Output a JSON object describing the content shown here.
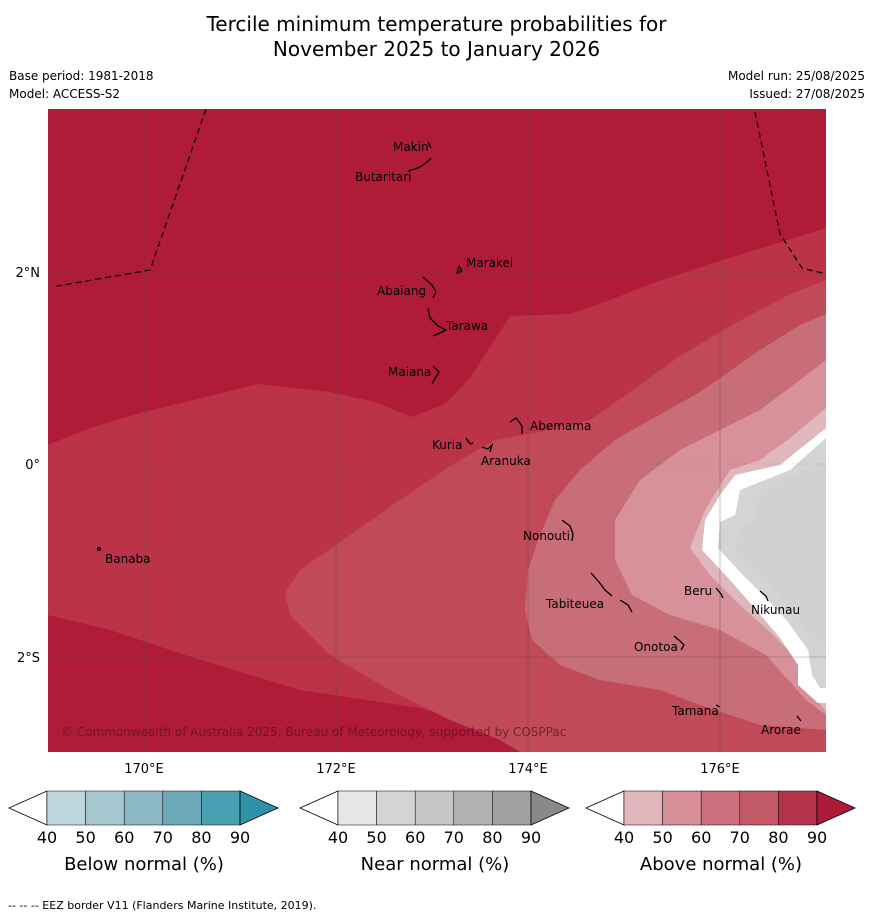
{
  "title_line1": "Tercile minimum temperature probabilities for",
  "title_line2": "November 2025 to January 2026",
  "meta_left": [
    "Base period: 1981-2018",
    "Model: ACCESS-S2"
  ],
  "meta_right": [
    "Model run: 25/08/2025",
    "Issued: 27/08/2025"
  ],
  "copyright": "© Commonwealth of Australia 2025, Bureau of Meteorology, supported by COSPPac",
  "axes": {
    "lon_ticks": [
      "170°E",
      "172°E",
      "174°E",
      "176°E"
    ],
    "lat_ticks": [
      "2°N",
      "0°",
      "2°S"
    ]
  },
  "islands": [
    "Makin",
    "Butaritari",
    "Marakei",
    "Abaiang",
    "Tarawa",
    "Maiana",
    "Abemama",
    "Kuria",
    "Aranuka",
    "Banaba",
    "Nonouti",
    "Tabiteuea",
    "Beru",
    "Nikunau",
    "Onotoa",
    "Tamana",
    "Arorae"
  ],
  "colorbars": [
    {
      "label": "Below normal (%)",
      "ticks": [
        "40",
        "50",
        "60",
        "70",
        "80",
        "90"
      ],
      "colors": [
        "#ffffff",
        "#bfd5dc",
        "#a6c7d0",
        "#8bb8c4",
        "#6ba9b8",
        "#4aa0b0",
        "#2e93a6"
      ]
    },
    {
      "label": "Near normal (%)",
      "ticks": [
        "40",
        "50",
        "60",
        "70",
        "80",
        "90"
      ],
      "colors": [
        "#ffffff",
        "#e6e6e6",
        "#d4d4d4",
        "#c6c6c6",
        "#b2b2b2",
        "#a0a0a0",
        "#888888"
      ]
    },
    {
      "label": "Above normal (%)",
      "ticks": [
        "40",
        "50",
        "60",
        "70",
        "80",
        "90"
      ],
      "colors": [
        "#ffffff",
        "#e1b7bd",
        "#d68e98",
        "#cc707d",
        "#c15a66",
        "#b5334a",
        "#ae1a3a"
      ]
    }
  ],
  "colors": {
    "above_90": "#b01b38",
    "above_80": "#bb3347",
    "above_70": "#c04a58",
    "above_60": "#c86e78",
    "above_50": "#d6919a",
    "above_40": "#e0b7bc",
    "near_normal": "#d4d4d4"
  },
  "footer": "-- -- -- EEZ border V11 (Flanders Marine Institute, 2019)."
}
